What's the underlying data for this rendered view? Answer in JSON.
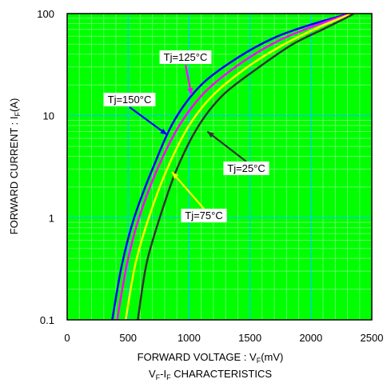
{
  "colors": {
    "background": "#ffffff",
    "plot_area": "#00ff00",
    "grid_major": "#00c8ff",
    "grid_minor": "#60ff60",
    "frame": "#000000"
  },
  "chart_data": {
    "type": "line",
    "title": "",
    "xlabel": {
      "main": "FORWARD VOLTAGE : V",
      "sub": "F",
      "tail": "(mV)"
    },
    "ylabel": {
      "main": "FORWARD CURRENT : I",
      "sub": "F",
      "tail": "(A)"
    },
    "caption": {
      "a": "V",
      "a_sub": "F",
      "mid": "-I",
      "b_sub": "F",
      "tail": " CHARACTERISTICS"
    },
    "x_scale": "linear",
    "y_scale": "log",
    "xlim": [
      0,
      2500
    ],
    "ylim": [
      0.1,
      100
    ],
    "x_ticks": [
      0,
      500,
      1000,
      1500,
      2000,
      2500
    ],
    "x_tick_labels": [
      "0",
      "500",
      "1000",
      "1500",
      "2000",
      "2500"
    ],
    "y_ticks": [
      0.1,
      1,
      10,
      100
    ],
    "y_tick_labels": [
      "0.1",
      "1",
      "10",
      "100"
    ],
    "grid": true,
    "legend": "annotations",
    "series": [
      {
        "name": "Tj=150°C",
        "color": "#0000ff",
        "points": [
          [
            370,
            0.1
          ],
          [
            450,
            0.35
          ],
          [
            550,
            1.0
          ],
          [
            700,
            3.0
          ],
          [
            880,
            9.0
          ],
          [
            1100,
            20
          ],
          [
            1400,
            37
          ],
          [
            1700,
            58
          ],
          [
            2000,
            78
          ],
          [
            2250,
            95
          ],
          [
            2300,
            100
          ]
        ]
      },
      {
        "name": "Tj=125°C",
        "color": "#ff00ff",
        "points": [
          [
            410,
            0.1
          ],
          [
            490,
            0.35
          ],
          [
            590,
            1.0
          ],
          [
            740,
            3.0
          ],
          [
            920,
            8.0
          ],
          [
            1130,
            17
          ],
          [
            1430,
            33
          ],
          [
            1730,
            54
          ],
          [
            2030,
            76
          ],
          [
            2270,
            95
          ],
          [
            2320,
            100
          ]
        ]
      },
      {
        "name": "Tj=75°C",
        "color": "#ffff00",
        "points": [
          [
            480,
            0.1
          ],
          [
            560,
            0.35
          ],
          [
            670,
            1.0
          ],
          [
            820,
            3.0
          ],
          [
            1000,
            8.0
          ],
          [
            1200,
            16
          ],
          [
            1480,
            30
          ],
          [
            1780,
            50
          ],
          [
            2070,
            74
          ],
          [
            2290,
            95
          ],
          [
            2340,
            100
          ]
        ]
      },
      {
        "name": "Tj=25°C",
        "color": "#333333",
        "points": [
          [
            580,
            0.1
          ],
          [
            650,
            0.35
          ],
          [
            760,
            1.0
          ],
          [
            900,
            3.0
          ],
          [
            1080,
            8.0
          ],
          [
            1280,
            16
          ],
          [
            1560,
            29
          ],
          [
            1850,
            50
          ],
          [
            2130,
            73
          ],
          [
            2320,
            95
          ],
          [
            2350,
            100
          ]
        ]
      }
    ],
    "annotations": [
      {
        "text": "Tj=125°C",
        "series": "Tj=125°C",
        "at": [
          1020,
          16
        ]
      },
      {
        "text": "Tj=150°C",
        "series": "Tj=150°C",
        "at": [
          820,
          6.5
        ]
      },
      {
        "text": "Tj=25°C",
        "series": "Tj=25°C",
        "at": [
          1150,
          7.0
        ]
      },
      {
        "text": "Tj=75°C",
        "series": "Tj=75°C",
        "at": [
          860,
          2.8
        ]
      }
    ]
  }
}
